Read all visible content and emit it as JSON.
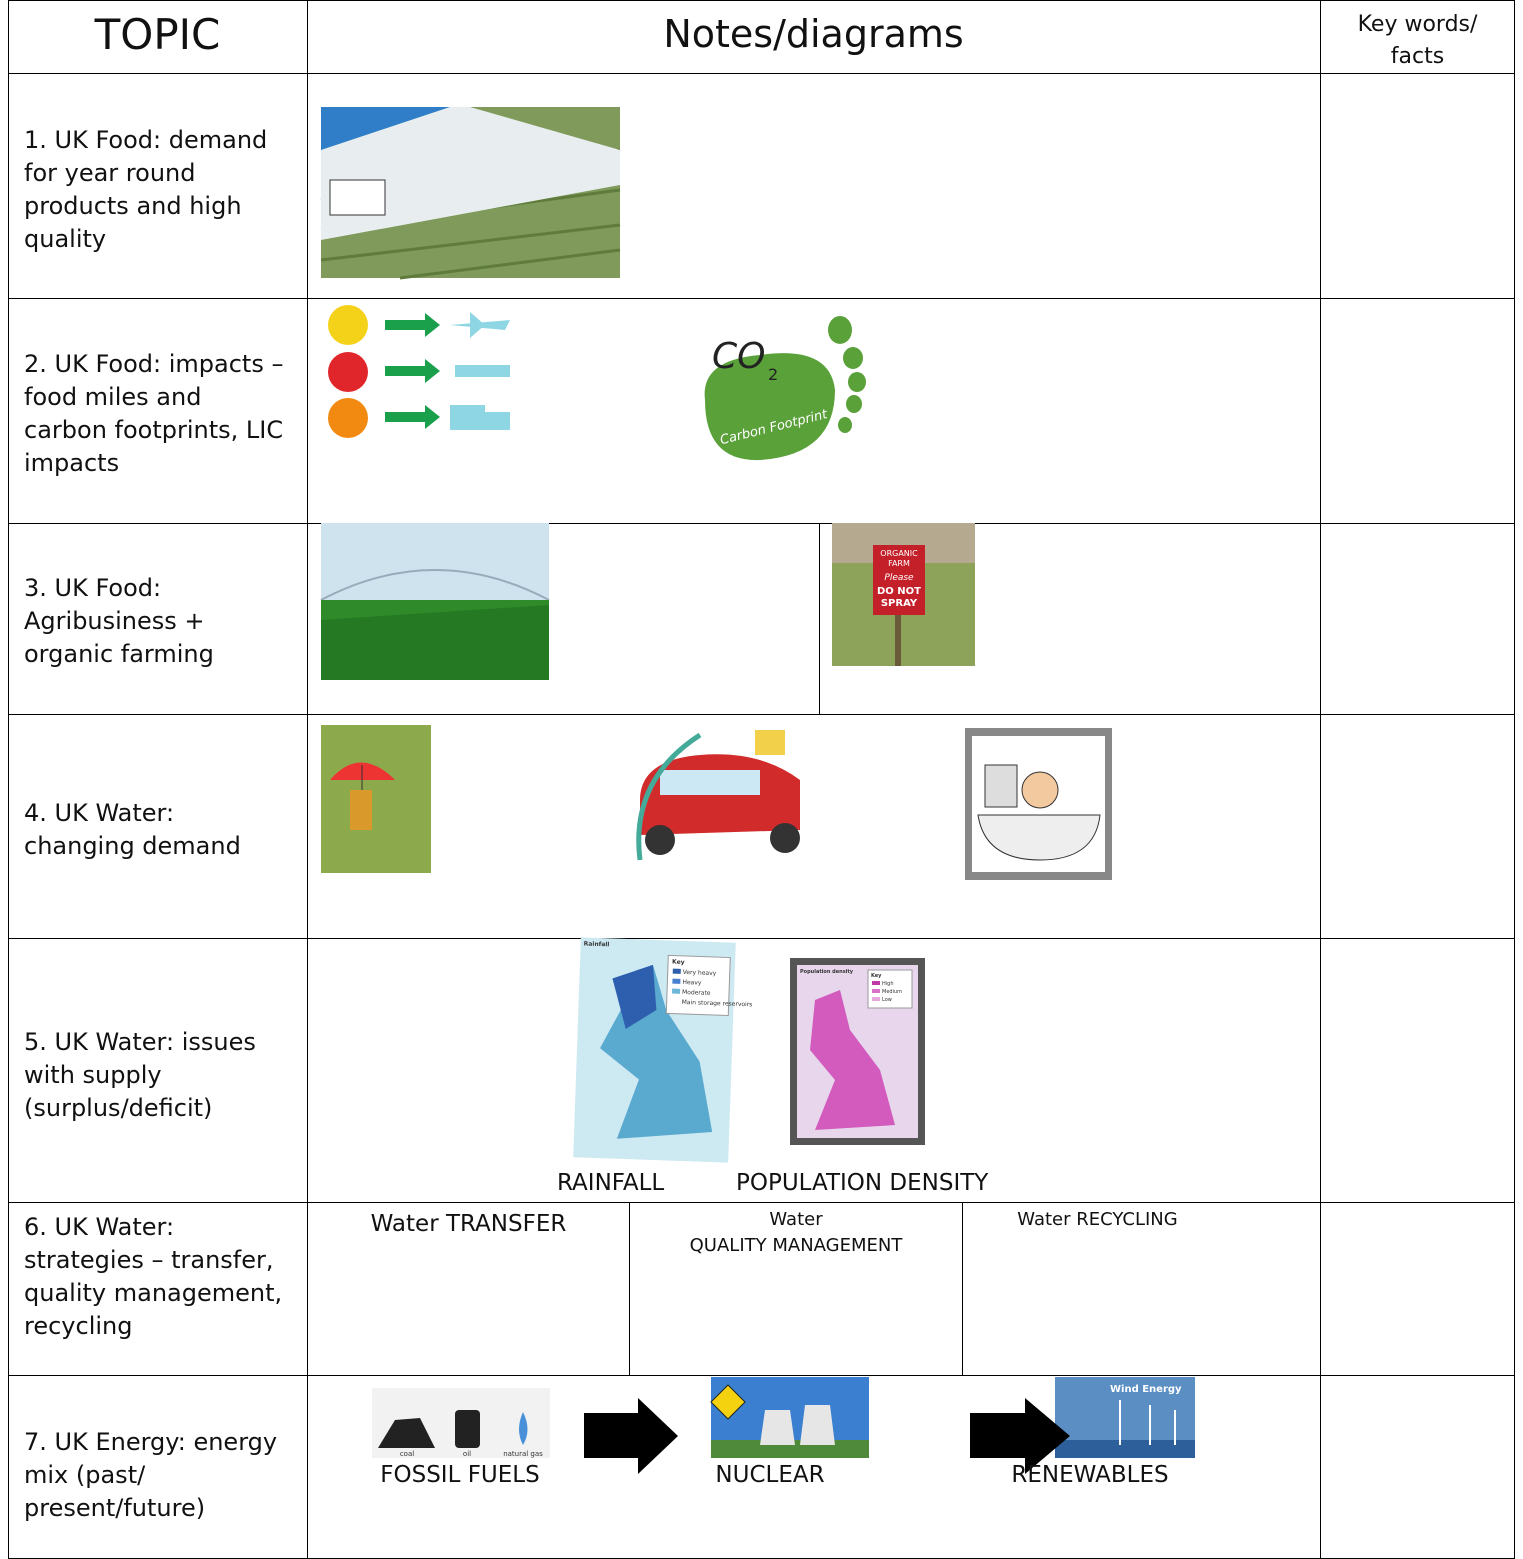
{
  "header": {
    "topic": "TOPIC",
    "notes": "Notes/diagrams",
    "key_words": [
      "Key words/",
      "facts"
    ]
  },
  "rows": [
    {
      "topic": "1. UK Food: demand for year round products and high quality"
    },
    {
      "topic": "2. UK Food: impacts – food miles and carbon footprints, LIC impacts",
      "image_text": [
        "CO",
        "2",
        "Carbon Footprint"
      ]
    },
    {
      "topic": "3. UK Food: Agribusiness + organic farming",
      "image_text": [
        "ORGANIC",
        "FARM",
        "Please",
        "DO NOT",
        "SPRAY"
      ]
    },
    {
      "topic": "4. UK Water: changing demand"
    },
    {
      "topic": "5.  UK Water: issues with supply (surplus/deficit)",
      "captions": [
        "RAINFALL",
        "POPULATION DENSITY"
      ],
      "image_text": [
        "Rainfall",
        "Key",
        "Very heavy",
        "Heavy",
        "Moderate",
        "Main storage reservoirs",
        "Population density",
        "Key",
        "High",
        "Medium",
        "Low"
      ]
    },
    {
      "topic": "6.  UK Water: strategies – transfer, quality management, recycling",
      "captions": [
        "Water TRANSFER",
        "Water",
        "QUALITY MANAGEMENT",
        "Water RECYCLING"
      ]
    },
    {
      "topic": "7.  UK Energy: energy mix (past/ present/future)",
      "captions": [
        "FOSSIL FUELS",
        "NUCLEAR",
        "RENEWABLES"
      ],
      "image_text": [
        "coal",
        "oil",
        "natural gas",
        "Wind Energy"
      ]
    }
  ]
}
